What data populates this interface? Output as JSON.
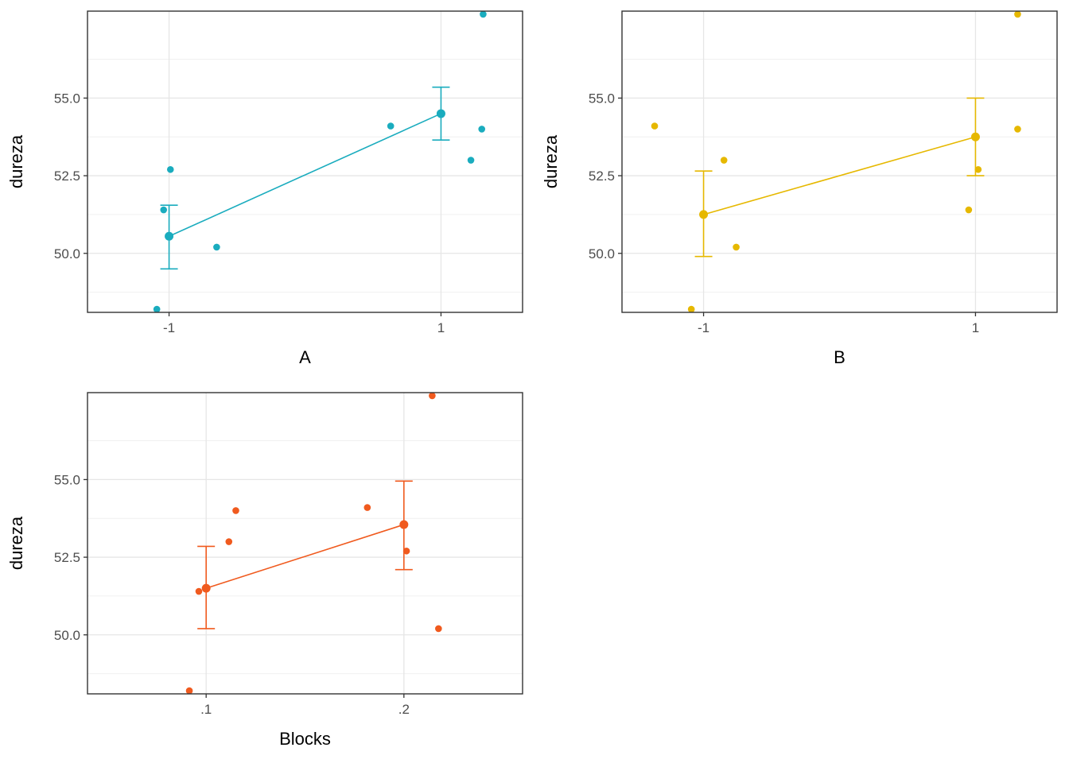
{
  "chart_data": [
    {
      "type": "scatter",
      "panel": "A",
      "xlabel": "A",
      "ylabel": "dureza",
      "x_ticks": [
        "-1",
        "1"
      ],
      "y_ticks": [
        "50.0",
        "52.5",
        "55.0"
      ],
      "xlim": [
        -1.6,
        1.6
      ],
      "ylim": [
        48.1,
        57.8
      ],
      "color": "#1AACBE",
      "points": [
        {
          "x": -1.09,
          "y": 48.2
        },
        {
          "x": -1.04,
          "y": 51.4
        },
        {
          "x": -0.99,
          "y": 52.7
        },
        {
          "x": -0.65,
          "y": 50.2
        },
        {
          "x": 0.63,
          "y": 54.1
        },
        {
          "x": 1.22,
          "y": 53.0
        },
        {
          "x": 1.3,
          "y": 54.0
        },
        {
          "x": 1.31,
          "y": 57.7
        }
      ],
      "means": [
        {
          "x": -1,
          "y": 50.55,
          "low": 49.5,
          "high": 51.55
        },
        {
          "x": 1,
          "y": 54.5,
          "low": 53.65,
          "high": 55.35
        }
      ]
    },
    {
      "type": "scatter",
      "panel": "B",
      "xlabel": "B",
      "ylabel": "dureza",
      "x_ticks": [
        "-1",
        "1"
      ],
      "y_ticks": [
        "50.0",
        "52.5",
        "55.0"
      ],
      "xlim": [
        -1.6,
        1.6
      ],
      "ylim": [
        48.1,
        57.8
      ],
      "color": "#E6B800",
      "points": [
        {
          "x": -1.36,
          "y": 54.1
        },
        {
          "x": -1.09,
          "y": 48.2
        },
        {
          "x": -0.85,
          "y": 53.0
        },
        {
          "x": -0.76,
          "y": 50.2
        },
        {
          "x": 0.95,
          "y": 51.4
        },
        {
          "x": 1.02,
          "y": 52.7
        },
        {
          "x": 1.31,
          "y": 54.0
        },
        {
          "x": 1.31,
          "y": 57.7
        }
      ],
      "means": [
        {
          "x": -1,
          "y": 51.25,
          "low": 49.9,
          "high": 52.65
        },
        {
          "x": 1,
          "y": 53.75,
          "low": 52.5,
          "high": 55.0
        }
      ]
    },
    {
      "type": "scatter",
      "panel": "Blocks",
      "xlabel": "Blocks",
      "ylabel": "dureza",
      "x_ticks": [
        ".1",
        ".2"
      ],
      "y_ticks": [
        "50.0",
        "52.5",
        "55.0"
      ],
      "xlim": [
        0.04,
        0.26
      ],
      "ylim": [
        48.1,
        57.8
      ],
      "color": "#F05A1E",
      "points": [
        {
          "x": 0.0915,
          "y": 48.2
        },
        {
          "x": 0.0963,
          "y": 51.4
        },
        {
          "x": 0.1115,
          "y": 53.0
        },
        {
          "x": 0.115,
          "y": 54.0
        },
        {
          "x": 0.1815,
          "y": 54.1
        },
        {
          "x": 0.2013,
          "y": 52.7
        },
        {
          "x": 0.2143,
          "y": 57.7
        },
        {
          "x": 0.2175,
          "y": 50.2
        }
      ],
      "means": [
        {
          "x": 0.1,
          "y": 51.5,
          "low": 50.2,
          "high": 52.85
        },
        {
          "x": 0.2,
          "y": 53.55,
          "low": 52.1,
          "high": 54.95
        }
      ]
    }
  ]
}
